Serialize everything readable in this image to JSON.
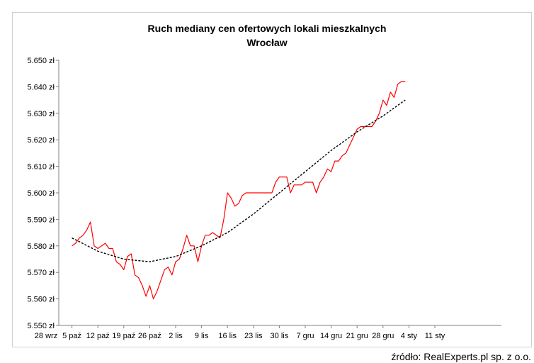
{
  "chart_data": {
    "type": "line",
    "title": "Ruch mediany cen ofertowych lokali mieszkalnych",
    "subtitle": "Wrocław",
    "xlabel": "",
    "ylabel": "",
    "x_unit": "days",
    "x_tick_labels": [
      "28 wrz",
      "5 paź",
      "12 paź",
      "19 paź",
      "26 paź",
      "2 lis",
      "9 lis",
      "16 lis",
      "23 lis",
      "30 lis",
      "7 gru",
      "14 gru",
      "21 gru",
      "28 gru",
      "4 sty",
      "11 sty"
    ],
    "y_ticks": [
      5550,
      5560,
      5570,
      5580,
      5590,
      5600,
      5610,
      5620,
      5630,
      5640,
      5650
    ],
    "y_tick_labels": [
      "5.550 zł",
      "5.560 zł",
      "5.570 zł",
      "5.580 zł",
      "5.590 zł",
      "5.600 zł",
      "5.610 zł",
      "5.620 zł",
      "5.630 zł",
      "5.640 zł",
      "5.650 zł"
    ],
    "ylim": [
      5550,
      5650
    ],
    "grid": false,
    "series": [
      {
        "color": "#ff0000",
        "style": "solid",
        "x": [
          "5 paź",
          "6 paź",
          "7 paź",
          "8 paź",
          "9 paź",
          "10 paź",
          "11 paź",
          "12 paź",
          "13 paź",
          "14 paź",
          "15 paź",
          "16 paź",
          "17 paź",
          "18 paź",
          "19 paź",
          "20 paź",
          "21 paź",
          "22 paź",
          "23 paź",
          "24 paź",
          "25 paź",
          "26 paź",
          "27 paź",
          "28 paź",
          "29 paź",
          "30 paź",
          "31 paź",
          "1 lis",
          "2 lis",
          "3 lis",
          "4 lis",
          "5 lis",
          "6 lis",
          "7 lis",
          "8 lis",
          "9 lis",
          "10 lis",
          "11 lis",
          "12 lis",
          "13 lis",
          "14 lis",
          "15 lis",
          "16 lis",
          "17 lis",
          "18 lis",
          "19 lis",
          "20 lis",
          "21 lis",
          "22 lis",
          "23 lis",
          "24 lis",
          "25 lis",
          "26 lis",
          "27 lis",
          "28 lis",
          "29 lis",
          "30 lis",
          "1 gru",
          "2 gru",
          "3 gru",
          "4 gru",
          "5 gru",
          "6 gru",
          "7 gru",
          "8 gru",
          "9 gru",
          "10 gru",
          "11 gru",
          "12 gru",
          "13 gru",
          "14 gru",
          "15 gru",
          "16 gru",
          "17 gru",
          "18 gru",
          "19 gru",
          "20 gru",
          "21 gru",
          "22 gru",
          "23 gru",
          "24 gru",
          "25 gru",
          "26 gru",
          "27 gru",
          "28 gru",
          "29 gru",
          "30 gru",
          "31 gru",
          "1 sty",
          "2 sty",
          "3 sty"
        ],
        "values": [
          5580,
          5581,
          5583,
          5584,
          5586,
          5589,
          5580,
          5579,
          5580,
          5581,
          5579,
          5579,
          5574,
          5573,
          5571,
          5576,
          5577,
          5569,
          5568,
          5565,
          5561,
          5565,
          5560,
          5563,
          5567,
          5571,
          5572,
          5569,
          5574,
          5575,
          5579,
          5584,
          5580,
          5580,
          5574,
          5580,
          5584,
          5584,
          5585,
          5584,
          5583,
          5590,
          5600,
          5598,
          5595,
          5596,
          5599,
          5600,
          5600,
          5600,
          5600,
          5600,
          5600,
          5600,
          5600,
          5604,
          5606,
          5606,
          5606,
          5600,
          5603,
          5603,
          5603,
          5604,
          5604,
          5604,
          5600,
          5604,
          5606,
          5609,
          5608,
          5612,
          5612,
          5614,
          5615,
          5618,
          5621,
          5624,
          5625,
          5625,
          5625,
          5625,
          5627,
          5630,
          5635,
          5633,
          5638,
          5636,
          5641,
          5642,
          5642
        ]
      },
      {
        "color": "#000000",
        "style": "dashed",
        "x": [
          "5 paź",
          "12 paź",
          "19 paź",
          "26 paź",
          "2 lis",
          "9 lis",
          "16 lis",
          "23 lis",
          "30 lis",
          "7 gru",
          "14 gru",
          "21 gru",
          "28 gru",
          "3 sty"
        ],
        "values": [
          5583,
          5578,
          5575,
          5574,
          5576,
          5580,
          5585,
          5592,
          5600,
          5608,
          5616,
          5623,
          5629,
          5635
        ]
      }
    ]
  },
  "source_text": "źródło: RealExperts.pl sp. z o.o."
}
